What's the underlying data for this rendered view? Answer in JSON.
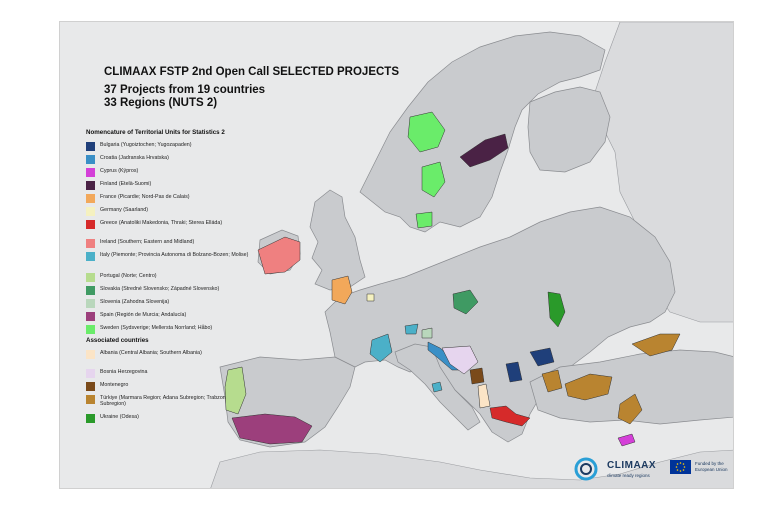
{
  "title": "CLIMAAX FSTP 2nd Open Call SELECTED PROJECTS",
  "subtitle_line1": "37 Projects from 19 countries",
  "subtitle_line2": "33 Regions (NUTS 2)",
  "nuts_section_title": "Nomencature of Territorial Units for Statistics 2",
  "nuts_items": [
    {
      "label": "Bulgaria (Yugoiztochen; Yugozapaden)",
      "color": "#1f3f7a"
    },
    {
      "label": "Croatia (Jadranska Hrvatska)",
      "color": "#3a8fc6"
    },
    {
      "label": "Cyprus (Kýpros)",
      "color": "#d43fd8"
    },
    {
      "label": "Finland (Etelä-Suomi)",
      "color": "#4a2245"
    },
    {
      "label": "France (Picardie; Nord-Pas de Calais)",
      "color": "#f2a85a"
    },
    {
      "label": "Germany (Saarland)",
      "color": "#f5f1c0"
    },
    {
      "label": "Greece (Anatoliki Makedonia, Thraki; Sterea Elláda)",
      "color": "#d62a2a"
    },
    {
      "label": "Ireland (Southern; Eastern and Midland)",
      "color": "#ef8080"
    },
    {
      "label": "Italy (Piemonte; Provincia Autonoma di Bolzano-Bozen; Molise)",
      "color": "#4bb0c8"
    },
    {
      "label": "Portugal (Norte; Centro)",
      "color": "#b6dc8e"
    },
    {
      "label": "Slovakia (Stredné Slovensko; Západné Slovensko)",
      "color": "#3f9a63"
    },
    {
      "label": "Slovenia (Zahodna Slovenija)",
      "color": "#b9d7bc"
    },
    {
      "label": "Spain (Región de Murcia; Andalucía)",
      "color": "#9c3f7c"
    },
    {
      "label": "Sweden (Sydsverige; Mellersta Norrland; Håbo)",
      "color": "#6aec6a"
    }
  ],
  "associated_section_title": "Associated countries",
  "associated_items": [
    {
      "label": "Albania (Central Albania; Southern Albania)",
      "color": "#fbe4c6"
    },
    {
      "label": "Bosnia Herzegovina",
      "color": "#e6d5ee"
    },
    {
      "label": "Montenegro",
      "color": "#7a4a1a"
    },
    {
      "label": "Türkiye (Marmara Region; Adana Subregion; Trabzon Subregion)",
      "color": "#b98430"
    },
    {
      "label": "Ukraine (Odesa)",
      "color": "#2a9a2a"
    }
  ],
  "logos": {
    "climaax_name": "CLIMAAX",
    "climaax_tagline": "climate ready regions",
    "eu_text": "Funded by the European Union"
  },
  "map_colors": {
    "sea": "#e8e9ea",
    "land": "#c9cbce",
    "land_border": "#8a8c90",
    "outside_land": "#dadbdd"
  }
}
